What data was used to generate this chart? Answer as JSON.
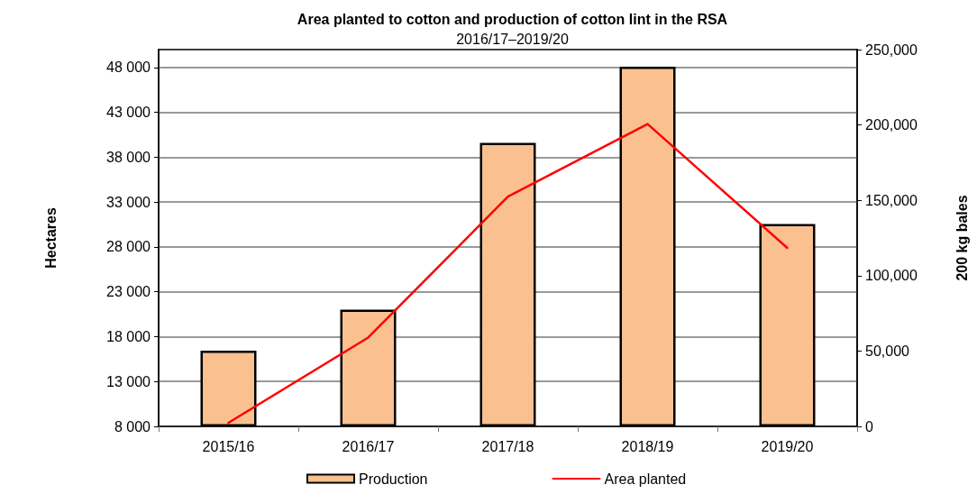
{
  "chart_data": {
    "type": "bar",
    "title": "Area planted to cotton and production of cotton lint in the RSA",
    "subtitle": "2016/17–2019/20",
    "ylabel": "Hectares",
    "y2label": "200 kg bales",
    "categories": [
      "2015/16",
      "2016/17",
      "2017/18",
      "2018/19",
      "2019/20"
    ],
    "series": [
      {
        "name": "Production",
        "axis": "y2",
        "color": "#fac090",
        "values": [
          50200,
          77400,
          188100,
          238600,
          134200
        ]
      },
      {
        "name": "Area planted",
        "type": "line",
        "axis": "y",
        "color": "#ff0000",
        "values": [
          8400,
          17900,
          33600,
          41700,
          27900
        ]
      }
    ],
    "ylim": [
      8000,
      50000
    ],
    "yticks": [
      {
        "value": 8000,
        "label": "8 000"
      },
      {
        "value": 13000,
        "label": "13 000"
      },
      {
        "value": 18000,
        "label": "18 000"
      },
      {
        "value": 23000,
        "label": "23 000"
      },
      {
        "value": 28000,
        "label": "28 000"
      },
      {
        "value": 33000,
        "label": "33 000"
      },
      {
        "value": 38000,
        "label": "38 000"
      },
      {
        "value": 43000,
        "label": "43 000"
      },
      {
        "value": 48000,
        "label": "48 000"
      }
    ],
    "y2lim": [
      0,
      250000
    ],
    "y2ticks": [
      0,
      {
        "value": 50000,
        "label": "50,000"
      },
      {
        "value": 100000,
        "label": "100,000"
      },
      {
        "value": 150000,
        "label": "150,000"
      },
      {
        "value": 200000,
        "label": "200,000"
      },
      {
        "value": 250000,
        "label": "250,000"
      }
    ],
    "grid": "y",
    "legend": "bottom",
    "marker": "none",
    "line_style": "solid"
  }
}
